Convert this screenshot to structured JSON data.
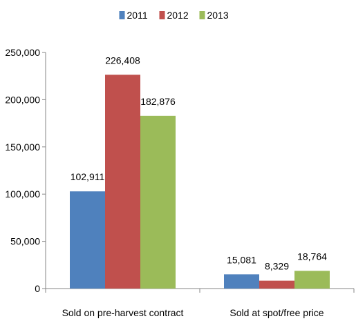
{
  "chart_data": {
    "type": "bar",
    "categories": [
      "Sold on pre-harvest contract",
      "Sold at spot/free price"
    ],
    "series": [
      {
        "name": "2011",
        "color": "#4F81BD",
        "values": [
          102911,
          15081
        ],
        "labels": [
          "102,911",
          "15,081"
        ]
      },
      {
        "name": "2012",
        "color": "#C0504D",
        "values": [
          226408,
          8329
        ],
        "labels": [
          "226,408",
          "8,329"
        ]
      },
      {
        "name": "2013",
        "color": "#9BBB59",
        "values": [
          182876,
          18764
        ],
        "labels": [
          "182,876",
          "18,764"
        ]
      }
    ],
    "ylim": [
      0,
      250000
    ],
    "yticks": [
      0,
      50000,
      100000,
      150000,
      200000,
      250000
    ],
    "ytick_labels": [
      "0",
      "50,000",
      "100,000",
      "150,000",
      "200,000",
      "250,000"
    ],
    "grid": false,
    "legend_position": "top-center",
    "axis_color": "#868686"
  }
}
